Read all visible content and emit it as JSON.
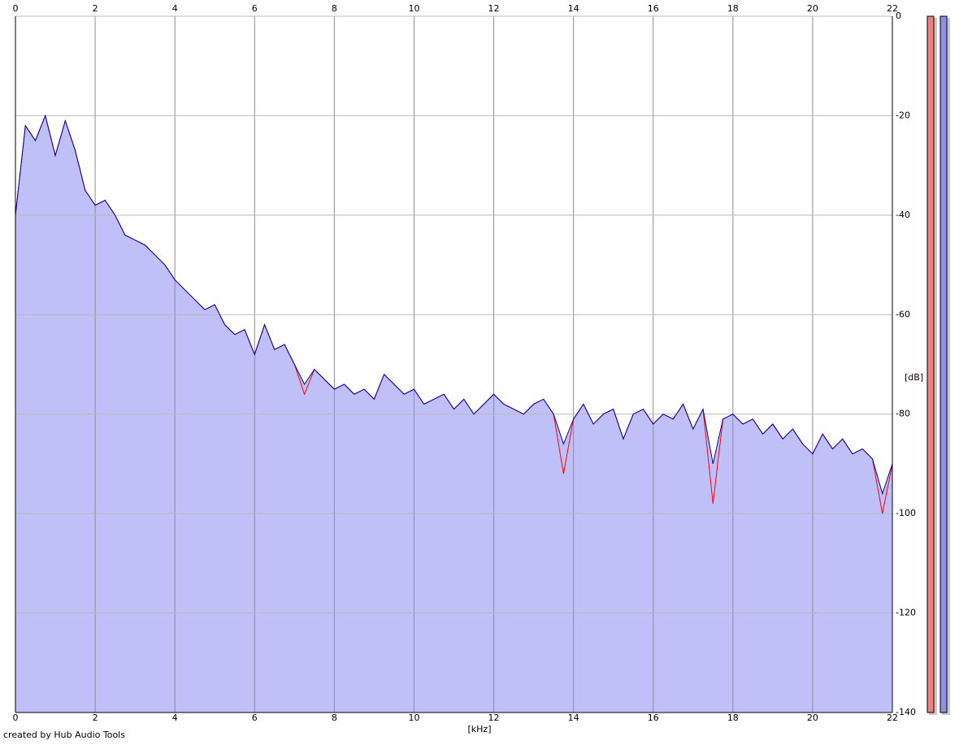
{
  "chart_data": {
    "type": "area",
    "xlabel": "[kHz]",
    "ylabel": "[dB]",
    "footer": "created by Hub Audio Tools",
    "x": [
      0,
      0.25,
      0.5,
      0.75,
      1,
      1.25,
      1.5,
      1.75,
      2,
      2.25,
      2.5,
      2.75,
      3,
      3.25,
      3.5,
      3.75,
      4,
      4.25,
      4.5,
      4.75,
      5,
      5.25,
      5.5,
      5.75,
      6,
      6.25,
      6.5,
      6.75,
      7,
      7.25,
      7.5,
      7.75,
      8,
      8.25,
      8.5,
      8.75,
      9,
      9.25,
      9.5,
      9.75,
      10,
      10.25,
      10.5,
      10.75,
      11,
      11.25,
      11.5,
      11.75,
      12,
      12.25,
      12.5,
      12.75,
      13,
      13.25,
      13.5,
      13.75,
      14,
      14.25,
      14.5,
      14.75,
      15,
      15.25,
      15.5,
      15.75,
      16,
      16.25,
      16.5,
      16.75,
      17,
      17.25,
      17.5,
      17.75,
      18,
      18.25,
      18.5,
      18.75,
      19,
      19.25,
      19.5,
      19.75,
      20,
      20.25,
      20.5,
      20.75,
      21,
      21.25,
      21.5,
      21.75,
      22
    ],
    "series": [
      {
        "color": "#ff0000",
        "values": [
          -40,
          -22,
          -25,
          -20,
          -28,
          -21,
          -27,
          -35,
          -38,
          -37,
          -40,
          -44,
          -45,
          -46,
          -48,
          -50,
          -53,
          -55,
          -57,
          -59,
          -58,
          -62,
          -64,
          -63,
          -68,
          -62,
          -67,
          -66,
          -70,
          -76,
          -71,
          -73,
          -75,
          -74,
          -76,
          -75,
          -77,
          -72,
          -74,
          -76,
          -75,
          -78,
          -77,
          -76,
          -79,
          -77,
          -80,
          -78,
          -76,
          -78,
          -79,
          -80,
          -78,
          -77,
          -80,
          -92,
          -81,
          -78,
          -82,
          -80,
          -79,
          -85,
          -80,
          -79,
          -82,
          -80,
          -81,
          -78,
          -83,
          -79,
          -98,
          -81,
          -80,
          -82,
          -81,
          -84,
          -82,
          -85,
          -83,
          -86,
          -88,
          -84,
          -87,
          -85,
          -88,
          -87,
          -89,
          -100,
          -90
        ]
      },
      {
        "color": "#0000b0",
        "fill": "#c0c0f8",
        "values": [
          -40,
          -22,
          -25,
          -20,
          -28,
          -21,
          -27,
          -35,
          -38,
          -37,
          -40,
          -44,
          -45,
          -46,
          -48,
          -50,
          -53,
          -55,
          -57,
          -59,
          -58,
          -62,
          -64,
          -63,
          -68,
          -62,
          -67,
          -66,
          -70,
          -74,
          -71,
          -73,
          -75,
          -74,
          -76,
          -75,
          -77,
          -72,
          -74,
          -76,
          -75,
          -78,
          -77,
          -76,
          -79,
          -77,
          -80,
          -78,
          -76,
          -78,
          -79,
          -80,
          -78,
          -77,
          -80,
          -86,
          -81,
          -78,
          -82,
          -80,
          -79,
          -85,
          -80,
          -79,
          -82,
          -80,
          -81,
          -78,
          -83,
          -79,
          -90,
          -81,
          -80,
          -82,
          -81,
          -84,
          -82,
          -85,
          -83,
          -86,
          -88,
          -84,
          -87,
          -85,
          -88,
          -87,
          -89,
          -96,
          -90
        ]
      }
    ],
    "xlim": [
      0,
      22
    ],
    "xticks": [
      0,
      2,
      4,
      6,
      8,
      10,
      12,
      14,
      16,
      18,
      20,
      22
    ],
    "ylim": [
      -140,
      0
    ],
    "yticks": [
      0,
      -20,
      -40,
      -60,
      -80,
      -100,
      -120,
      -140
    ],
    "grid": true
  }
}
